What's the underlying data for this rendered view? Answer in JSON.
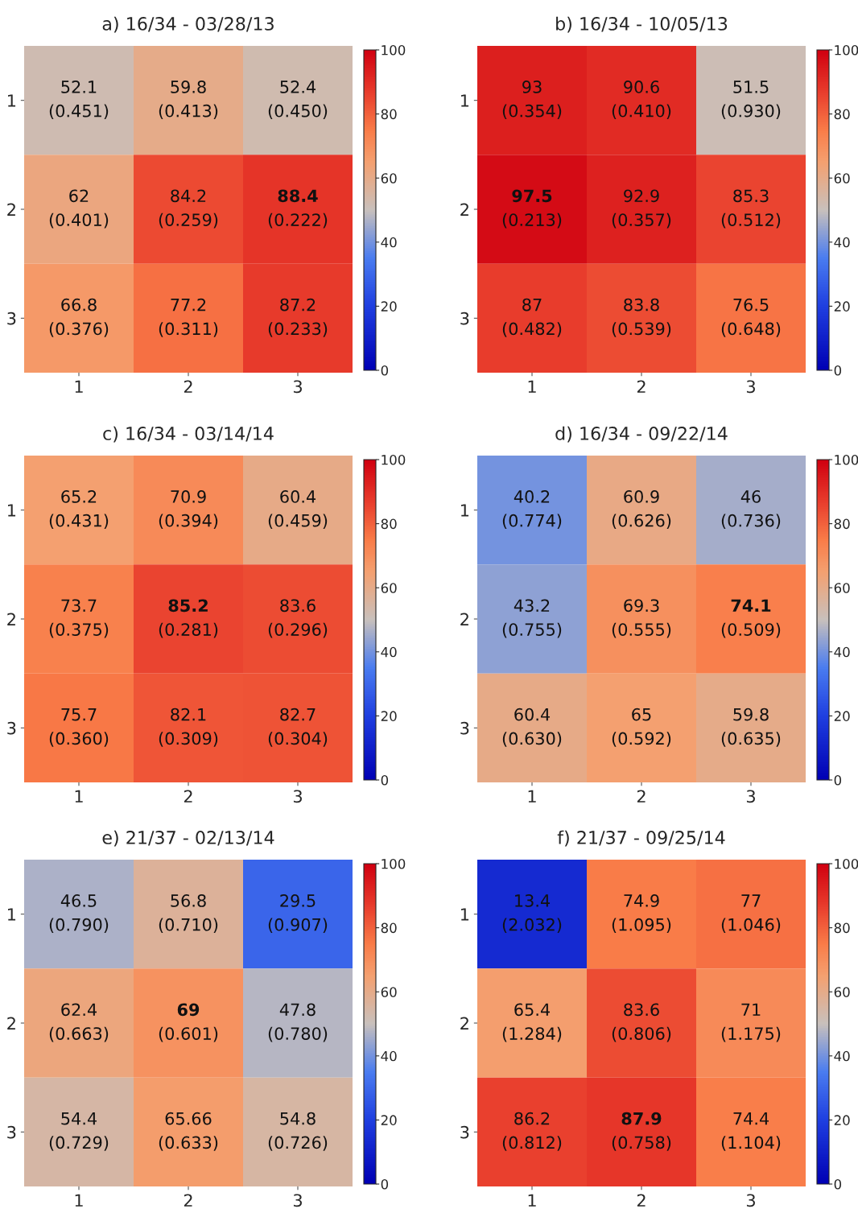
{
  "chart_data": [
    {
      "type": "heatmap",
      "title": "a) 16/34 - 03/28/13",
      "categories": [
        "1",
        "2",
        "3"
      ],
      "y_categories": [
        "1",
        "2",
        "3"
      ],
      "cells": [
        [
          52.1,
          59.8,
          52.4
        ],
        [
          62,
          84.2,
          88.4
        ],
        [
          66.8,
          77.2,
          87.2
        ]
      ],
      "cell_labels": [
        [
          "52.1\n(0.451)",
          "59.8\n(0.413)",
          "52.4\n(0.450)"
        ],
        [
          "62\n(0.401)",
          "84.2\n(0.259)",
          "88.4\n(0.222)"
        ],
        [
          "66.8\n(0.376)",
          "77.2\n(0.311)",
          "87.2\n(0.233)"
        ]
      ],
      "clim": [
        0,
        100
      ],
      "cticks": [
        0,
        20,
        40,
        60,
        80,
        100
      ]
    },
    {
      "type": "heatmap",
      "title": "b) 16/34 - 10/05/13",
      "categories": [
        "1",
        "2",
        "3"
      ],
      "y_categories": [
        "1",
        "2",
        "3"
      ],
      "cells": [
        [
          93,
          90.6,
          51.5
        ],
        [
          97.5,
          92.9,
          85.3
        ],
        [
          87,
          83.8,
          76.5
        ]
      ],
      "cell_labels": [
        [
          "93\n(0.354)",
          "90.6\n(0.410)",
          "51.5\n(0.930)"
        ],
        [
          "97.5\n(0.213)",
          "92.9\n(0.357)",
          "85.3\n(0.512)"
        ],
        [
          "87\n(0.482)",
          "83.8\n(0.539)",
          "76.5\n(0.648)"
        ]
      ],
      "clim": [
        0,
        100
      ],
      "cticks": [
        0,
        20,
        40,
        60,
        80,
        100
      ]
    },
    {
      "type": "heatmap",
      "title": "c) 16/34 - 03/14/14",
      "categories": [
        "1",
        "2",
        "3"
      ],
      "y_categories": [
        "1",
        "2",
        "3"
      ],
      "cells": [
        [
          65.2,
          70.9,
          60.4
        ],
        [
          73.7,
          85.2,
          83.6
        ],
        [
          75.7,
          82.1,
          82.7
        ]
      ],
      "cell_labels": [
        [
          "65.2\n(0.431)",
          "70.9\n(0.394)",
          "60.4\n(0.459)"
        ],
        [
          "73.7\n(0.375)",
          "85.2\n(0.281)",
          "83.6\n(0.296)"
        ],
        [
          "75.7\n(0.360)",
          "82.1\n(0.309)",
          "82.7\n(0.304)"
        ]
      ],
      "clim": [
        0,
        100
      ],
      "cticks": [
        0,
        20,
        40,
        60,
        80,
        100
      ]
    },
    {
      "type": "heatmap",
      "title": "d) 16/34 - 09/22/14",
      "categories": [
        "1",
        "2",
        "3"
      ],
      "y_categories": [
        "1",
        "2",
        "3"
      ],
      "cells": [
        [
          40.2,
          60.9,
          46
        ],
        [
          43.2,
          69.3,
          74.1
        ],
        [
          60.4,
          65,
          59.8
        ]
      ],
      "cell_labels": [
        [
          "40.2\n(0.774)",
          "60.9\n(0.626)",
          "46\n(0.736)"
        ],
        [
          "43.2\n(0.755)",
          "69.3\n(0.555)",
          "74.1\n(0.509)"
        ],
        [
          "60.4\n(0.630)",
          "65\n(0.592)",
          "59.8\n(0.635)"
        ]
      ],
      "clim": [
        0,
        100
      ],
      "cticks": [
        0,
        20,
        40,
        60,
        80,
        100
      ]
    },
    {
      "type": "heatmap",
      "title": "e) 21/37 - 02/13/14",
      "categories": [
        "1",
        "2",
        "3"
      ],
      "y_categories": [
        "1",
        "2",
        "3"
      ],
      "cells": [
        [
          46.5,
          56.8,
          29.5
        ],
        [
          62.4,
          69,
          47.8
        ],
        [
          54.4,
          65.66,
          54.8
        ]
      ],
      "cell_labels": [
        [
          "46.5\n(0.790)",
          "56.8\n(0.710)",
          "29.5\n(0.907)"
        ],
        [
          "62.4\n(0.663)",
          "69\n(0.601)",
          "47.8\n(0.780)"
        ],
        [
          "54.4\n(0.729)",
          "65.66\n(0.633)",
          "54.8\n(0.726)"
        ]
      ],
      "clim": [
        0,
        100
      ],
      "cticks": [
        0,
        20,
        40,
        60,
        80,
        100
      ]
    },
    {
      "type": "heatmap",
      "title": "f) 21/37 - 09/25/14",
      "categories": [
        "1",
        "2",
        "3"
      ],
      "y_categories": [
        "1",
        "2",
        "3"
      ],
      "cells": [
        [
          13.4,
          74.9,
          77
        ],
        [
          65.4,
          83.6,
          71
        ],
        [
          86.2,
          87.9,
          74.4
        ]
      ],
      "cell_labels": [
        [
          "13.4\n(2.032)",
          "74.9\n(1.095)",
          "77\n(1.046)"
        ],
        [
          "65.4\n(1.284)",
          "83.6\n(0.806)",
          "71\n(1.175)"
        ],
        [
          "86.2\n(0.812)",
          "87.9\n(0.758)",
          "74.4\n(1.104)"
        ]
      ],
      "clim": [
        0,
        100
      ],
      "cticks": [
        0,
        20,
        40,
        60,
        80,
        100
      ]
    }
  ]
}
